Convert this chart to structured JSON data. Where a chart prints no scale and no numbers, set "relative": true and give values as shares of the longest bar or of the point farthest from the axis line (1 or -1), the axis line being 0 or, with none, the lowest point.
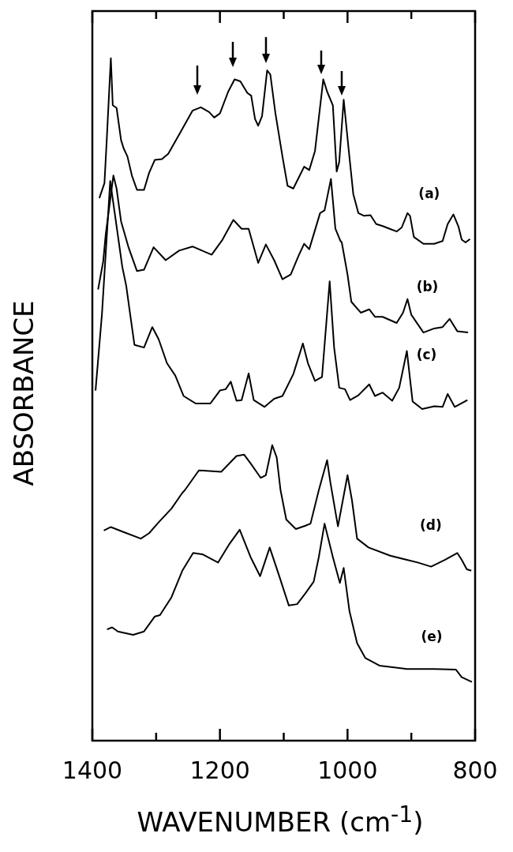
{
  "chart_data": {
    "type": "line",
    "xlabel": "WAVENUMBER (cm$^{-1}$)",
    "ylabel": "ABSORBANCE",
    "relative": true,
    "legend": false,
    "grid": false,
    "marker": "none",
    "line_style": "solid",
    "xlim": [
      1400,
      800
    ],
    "xticks": [
      1400,
      {
        "value": 1300,
        "label": null
      },
      1200,
      {
        "value": 1100,
        "label": null
      },
      1000,
      {
        "value": 900,
        "label": null
      },
      800
    ],
    "series": [
      {
        "name": "(a)",
        "color": "#000000",
        "x": [
          1389,
          1381,
          1377,
          1371,
          1368,
          1362,
          1355,
          1351,
          1345,
          1338,
          1330,
          1319,
          1311,
          1302,
          1291,
          1281,
          1264,
          1243,
          1230,
          1217,
          1209,
          1200,
          1187,
          1177,
          1168,
          1157,
          1151,
          1145,
          1140,
          1134,
          1126,
          1121,
          1113,
          1102,
          1094,
          1085,
          1077,
          1068,
          1060,
          1051,
          1038,
          1032,
          1023,
          1017,
          1013,
          1006,
          998,
          991,
          983,
          974,
          964,
          955,
          945,
          934,
          923,
          915,
          906,
          902,
          896,
          881,
          864,
          851,
          843,
          834,
          826,
          821,
          815,
          808
        ],
        "values": [
          0.795,
          0.817,
          0.888,
          1.0,
          0.931,
          0.927,
          0.88,
          0.868,
          0.856,
          0.828,
          0.807,
          0.807,
          0.832,
          0.851,
          0.852,
          0.86,
          0.888,
          0.923,
          0.928,
          0.921,
          0.913,
          0.919,
          0.951,
          0.969,
          0.966,
          0.949,
          0.945,
          0.911,
          0.901,
          0.915,
          0.982,
          0.976,
          0.919,
          0.856,
          0.813,
          0.809,
          0.824,
          0.841,
          0.836,
          0.864,
          0.969,
          0.951,
          0.931,
          0.834,
          0.848,
          0.939,
          0.864,
          0.801,
          0.773,
          0.769,
          0.77,
          0.757,
          0.754,
          0.75,
          0.746,
          0.752,
          0.773,
          0.769,
          0.738,
          0.728,
          0.728,
          0.732,
          0.757,
          0.771,
          0.753,
          0.734,
          0.73,
          0.735
        ]
      },
      {
        "name": "(b)",
        "color": "#000000",
        "x": [
          1391,
          1383,
          1379,
          1367,
          1362,
          1355,
          1343,
          1330,
          1319,
          1304,
          1285,
          1264,
          1243,
          1213,
          1196,
          1179,
          1166,
          1155,
          1149,
          1140,
          1128,
          1115,
          1102,
          1089,
          1077,
          1068,
          1060,
          1043,
          1036,
          1026,
          1019,
          1011,
          1009,
          1000,
          994,
          979,
          966,
          957,
          945,
          923,
          913,
          906,
          900,
          881,
          864,
          851,
          840,
          828,
          811
        ],
        "values": [
          0.661,
          0.702,
          0.742,
          0.828,
          0.809,
          0.761,
          0.722,
          0.688,
          0.69,
          0.723,
          0.704,
          0.718,
          0.724,
          0.712,
          0.734,
          0.763,
          0.75,
          0.75,
          0.73,
          0.7,
          0.727,
          0.704,
          0.676,
          0.683,
          0.71,
          0.728,
          0.72,
          0.773,
          0.777,
          0.823,
          0.75,
          0.732,
          0.73,
          0.683,
          0.643,
          0.627,
          0.632,
          0.621,
          0.621,
          0.612,
          0.627,
          0.647,
          0.624,
          0.598,
          0.604,
          0.606,
          0.618,
          0.6,
          0.598
        ]
      },
      {
        "name": "(c)",
        "color": "#000000",
        "x": [
          1395,
          1385,
          1372,
          1353,
          1347,
          1340,
          1334,
          1319,
          1306,
          1296,
          1283,
          1270,
          1257,
          1238,
          1215,
          1200,
          1191,
          1183,
          1174,
          1166,
          1155,
          1147,
          1130,
          1115,
          1102,
          1085,
          1070,
          1062,
          1051,
          1040,
          1028,
          1021,
          1013,
          1004,
          996,
          983,
          966,
          957,
          945,
          930,
          919,
          907,
          898,
          883,
          864,
          851,
          843,
          832,
          812
        ],
        "values": [
          0.513,
          0.624,
          0.82,
          0.694,
          0.667,
          0.62,
          0.58,
          0.576,
          0.606,
          0.588,
          0.553,
          0.535,
          0.505,
          0.494,
          0.494,
          0.513,
          0.515,
          0.526,
          0.498,
          0.499,
          0.538,
          0.499,
          0.489,
          0.501,
          0.505,
          0.537,
          0.582,
          0.553,
          0.527,
          0.533,
          0.673,
          0.576,
          0.517,
          0.515,
          0.499,
          0.506,
          0.522,
          0.505,
          0.51,
          0.498,
          0.517,
          0.571,
          0.497,
          0.486,
          0.49,
          0.489,
          0.508,
          0.489,
          0.499
        ]
      },
      {
        "name": "(d)",
        "color": "#000000",
        "x": [
          1382,
          1371,
          1352,
          1324,
          1311,
          1296,
          1276,
          1259,
          1255,
          1233,
          1198,
          1174,
          1162,
          1151,
          1136,
          1128,
          1118,
          1111,
          1105,
          1096,
          1081,
          1066,
          1058,
          1045,
          1032,
          1027,
          1015,
          1000,
          993,
          985,
          967,
          933,
          890,
          869,
          847,
          828,
          821,
          813,
          806
        ],
        "values": [
          0.308,
          0.313,
          0.306,
          0.296,
          0.304,
          0.32,
          0.34,
          0.363,
          0.367,
          0.396,
          0.394,
          0.417,
          0.419,
          0.405,
          0.385,
          0.389,
          0.433,
          0.415,
          0.367,
          0.324,
          0.31,
          0.315,
          0.318,
          0.367,
          0.411,
          0.379,
          0.314,
          0.389,
          0.352,
          0.296,
          0.283,
          0.271,
          0.261,
          0.255,
          0.265,
          0.275,
          0.265,
          0.251,
          0.249
        ]
      },
      {
        "name": "(e)",
        "color": "#000000",
        "x": [
          1377,
          1369,
          1360,
          1336,
          1319,
          1302,
          1294,
          1276,
          1259,
          1242,
          1227,
          1203,
          1186,
          1169,
          1152,
          1137,
          1122,
          1107,
          1092,
          1079,
          1066,
          1053,
          1045,
          1036,
          1023,
          1012,
          1006,
          997,
          985,
          972,
          950,
          907,
          864,
          830,
          821,
          805
        ],
        "values": [
          0.163,
          0.166,
          0.16,
          0.155,
          0.16,
          0.182,
          0.184,
          0.21,
          0.249,
          0.275,
          0.273,
          0.261,
          0.287,
          0.309,
          0.269,
          0.241,
          0.283,
          0.241,
          0.198,
          0.2,
          0.216,
          0.233,
          0.269,
          0.318,
          0.269,
          0.231,
          0.253,
          0.19,
          0.143,
          0.121,
          0.11,
          0.105,
          0.105,
          0.104,
          0.093,
          0.086
        ]
      }
    ]
  }
}
